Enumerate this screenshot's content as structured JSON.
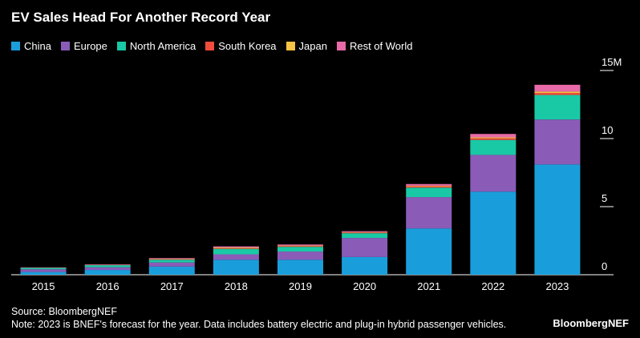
{
  "title": "EV Sales Head For Another Record Year",
  "legend": [
    {
      "label": "China",
      "color": "#1a9edb"
    },
    {
      "label": "Europe",
      "color": "#8a5cb8"
    },
    {
      "label": "North America",
      "color": "#19c9a5"
    },
    {
      "label": "South Korea",
      "color": "#ef4c3c"
    },
    {
      "label": "Japan",
      "color": "#f6c344"
    },
    {
      "label": "Rest of World",
      "color": "#e86aa8"
    }
  ],
  "source": "Source: BloombergNEF",
  "note": "Note: 2023 is BNEF's forecast for the year. Data includes battery electric and plug-in hybrid passenger vehicles.",
  "brand": "BloombergNEF",
  "chart_data": {
    "type": "bar",
    "stacked": true,
    "categories": [
      "2015",
      "2016",
      "2017",
      "2018",
      "2019",
      "2020",
      "2021",
      "2022",
      "2023"
    ],
    "series": [
      {
        "name": "China",
        "color": "#1a9edb",
        "values": [
          0.2,
          0.35,
          0.6,
          1.1,
          1.1,
          1.3,
          3.4,
          6.1,
          8.1
        ]
      },
      {
        "name": "Europe",
        "color": "#8a5cb8",
        "values": [
          0.2,
          0.2,
          0.3,
          0.4,
          0.6,
          1.4,
          2.3,
          2.7,
          3.3
        ]
      },
      {
        "name": "North America",
        "color": "#19c9a5",
        "values": [
          0.1,
          0.15,
          0.2,
          0.4,
          0.35,
          0.35,
          0.7,
          1.1,
          1.8
        ]
      },
      {
        "name": "South Korea",
        "color": "#ef4c3c",
        "values": [
          0.0,
          0.0,
          0.02,
          0.05,
          0.05,
          0.05,
          0.1,
          0.12,
          0.15
        ]
      },
      {
        "name": "Japan",
        "color": "#f6c344",
        "values": [
          0.01,
          0.02,
          0.04,
          0.05,
          0.04,
          0.03,
          0.04,
          0.07,
          0.1
        ]
      },
      {
        "name": "Rest of World",
        "color": "#e86aa8",
        "values": [
          0.03,
          0.04,
          0.06,
          0.08,
          0.08,
          0.07,
          0.12,
          0.25,
          0.5
        ]
      }
    ],
    "yticks": [
      0,
      5,
      10,
      15
    ],
    "ytick_labels": [
      "0",
      "5",
      "10",
      "15M"
    ],
    "ylim": [
      0,
      15
    ],
    "grid": false,
    "legend_position": "top-left"
  }
}
